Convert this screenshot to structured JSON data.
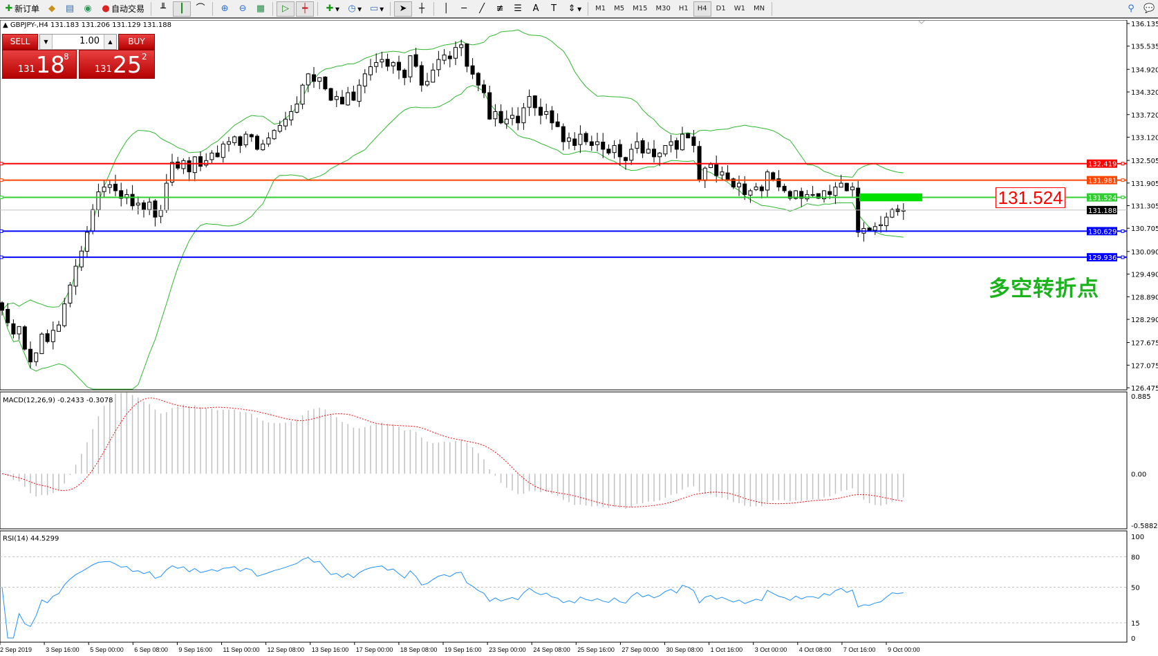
{
  "toolbar": {
    "new_order": "新订单",
    "auto_trading": "自动交易",
    "icons": [
      "new-order-icon",
      "expert-icon",
      "market-watch-icon",
      "signals-icon",
      "auto-trading-icon",
      "bar-chart-icon",
      "candlestick-icon",
      "line-chart-icon",
      "zoom-in-icon",
      "zoom-out-icon",
      "tile-windows-icon",
      "chart-shift-icon",
      "autoscroll-icon",
      "indicators-icon",
      "periods-icon",
      "templates-icon",
      "cursor-icon",
      "crosshair-icon",
      "vertical-line-icon",
      "horizontal-line-icon",
      "trendline-icon",
      "fibonacci-icon",
      "channel-icon",
      "text-icon",
      "text-label-icon",
      "arrows-icon",
      "search-icon",
      "chat-icon"
    ],
    "timeframes": [
      "M1",
      "M5",
      "M15",
      "M30",
      "H1",
      "H4",
      "D1",
      "W1",
      "MN"
    ],
    "active_timeframe": "H4"
  },
  "chart": {
    "header": "GBPJPY-,H4  131.183 131.206 131.129 131.188",
    "one_click": {
      "sell": "SELL",
      "buy": "BUY",
      "lot": "1.00",
      "sell_prefix": "131",
      "sell_big": "18",
      "sell_sup": "8",
      "buy_prefix": "131",
      "buy_big": "25",
      "buy_sup": "2"
    },
    "annotation_price": "131.524",
    "annotation_text": "多空转折点",
    "colors": {
      "bull_body": "#ffffff",
      "bear_body": "#000000",
      "bands": "#2eb82e",
      "macd_hist": "#c0c0c0",
      "macd_signal": "#ff0000",
      "rsi": "#1e90ff",
      "annotation": "#1bb31b"
    }
  },
  "chart_data": {
    "type": "candlestick",
    "symbol": "GBPJPY-",
    "timeframe": "H4",
    "price_axis_ticks": [
      "136.135",
      "135.535",
      "134.920",
      "134.320",
      "133.720",
      "133.120",
      "132.505",
      "131.905",
      "131.305",
      "130.705",
      "130.090",
      "129.490",
      "128.890",
      "128.290",
      "127.675",
      "127.075",
      "126.475"
    ],
    "ylim": [
      126.475,
      136.135
    ],
    "time_labels": [
      "2 Sep 2019",
      "3 Sep 16:00",
      "5 Sep 00:00",
      "6 Sep 08:00",
      "9 Sep 16:00",
      "11 Sep 00:00",
      "12 Sep 08:00",
      "13 Sep 16:00",
      "17 Sep 00:00",
      "18 Sep 08:00",
      "19 Sep 16:00",
      "23 Sep 00:00",
      "24 Sep 08:00",
      "25 Sep 16:00",
      "27 Sep 00:00",
      "30 Sep 08:00",
      "1 Oct 16:00",
      "3 Oct 00:00",
      "4 Oct 08:00",
      "7 Oct 16:00",
      "9 Oct 00:00"
    ],
    "closes": [
      128.53,
      128.2,
      127.9,
      128.1,
      127.5,
      127.16,
      127.4,
      127.9,
      127.7,
      128.0,
      128.14,
      128.7,
      129.2,
      129.7,
      130.1,
      130.6,
      131.2,
      131.67,
      131.8,
      131.86,
      131.7,
      131.5,
      131.6,
      131.3,
      131.37,
      131.2,
      131.4,
      131.0,
      131.18,
      131.9,
      132.45,
      132.3,
      132.5,
      132.2,
      132.6,
      132.35,
      132.5,
      132.7,
      132.6,
      132.94,
      133.0,
      133.13,
      132.9,
      133.2,
      133.13,
      132.8,
      132.94,
      133.1,
      133.3,
      133.43,
      133.6,
      133.8,
      134.0,
      134.5,
      134.8,
      134.6,
      134.7,
      134.4,
      134.1,
      134.2,
      134.0,
      134.3,
      134.1,
      134.5,
      134.8,
      134.99,
      135.1,
      135.18,
      135.0,
      135.1,
      134.9,
      134.7,
      135.28,
      135.0,
      134.5,
      134.6,
      134.9,
      135.18,
      135.3,
      135.2,
      135.5,
      135.57,
      135.0,
      134.79,
      134.5,
      134.3,
      133.6,
      133.8,
      133.5,
      133.6,
      133.7,
      133.5,
      133.9,
      134.2,
      133.9,
      133.7,
      133.8,
      133.5,
      133.4,
      133.0,
      133.1,
      132.9,
      133.2,
      133.0,
      132.9,
      133.0,
      132.8,
      132.7,
      132.9,
      132.6,
      132.5,
      132.8,
      133.0,
      132.7,
      132.8,
      132.6,
      132.7,
      132.9,
      133.0,
      132.8,
      133.2,
      133.1,
      132.9,
      132.0,
      132.3,
      132.4,
      132.1,
      132.2,
      132.0,
      131.8,
      131.9,
      131.6,
      131.7,
      131.8,
      131.7,
      132.2,
      132.0,
      131.8,
      131.7,
      131.5,
      131.7,
      131.5,
      131.6,
      131.6,
      131.5,
      131.7,
      131.6,
      131.8,
      131.9,
      131.7,
      131.8,
      130.6,
      130.7,
      130.65,
      130.75,
      130.8,
      131.0,
      131.2,
      131.15,
      131.188
    ],
    "horizontal_lines": [
      {
        "price": 132.419,
        "label": "132.419",
        "color": "#ff0000"
      },
      {
        "price": 131.981,
        "label": "131.981",
        "color": "#ff4500"
      },
      {
        "price": 131.524,
        "label": "131.524",
        "color": "#32cd32"
      },
      {
        "price": 130.629,
        "label": "130.629",
        "color": "#0000ff"
      },
      {
        "price": 129.936,
        "label": "129.936",
        "color": "#0000ff"
      }
    ],
    "bid": {
      "price": 131.188,
      "label": "131.188"
    },
    "highlight_zone": {
      "from": 131.42,
      "to": 131.63,
      "color": "#00e000"
    },
    "indicators": {
      "bollinger": {
        "period": 20,
        "deviation": 2
      },
      "macd": {
        "label": "MACD(12,26,9) -0.2433 -0.3078",
        "ticks": [
          "0.885",
          "0.00",
          "-0.5882"
        ],
        "ylim": [
          -0.5882,
          0.885
        ]
      },
      "rsi": {
        "label": "RSI(14) 44.5299",
        "ticks": [
          "100",
          "80",
          "50",
          "15",
          "0"
        ],
        "levels": [
          80,
          50,
          15
        ]
      }
    }
  }
}
